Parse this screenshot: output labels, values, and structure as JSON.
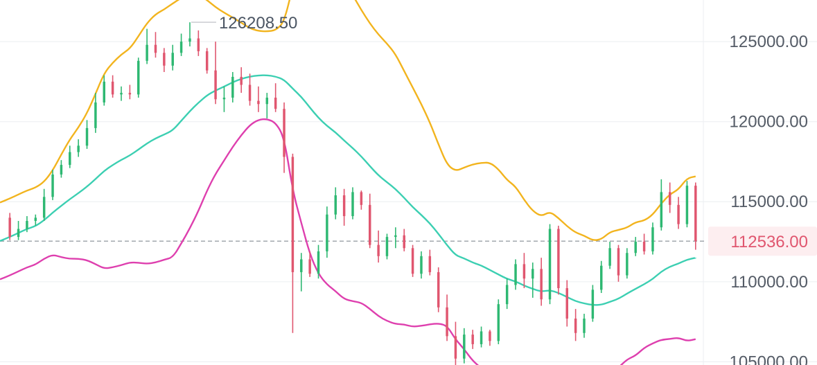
{
  "chart_data": {
    "type": "candlestick",
    "indicator": "Bollinger Bands",
    "y_axis": {
      "side": "right",
      "range": [
        104800,
        127600
      ],
      "tick_labels": [
        "125000.00",
        "120000.00",
        "115000.00",
        "110000.00",
        "105000.00"
      ],
      "tick_values": [
        125000,
        120000,
        115000,
        110000,
        105000
      ],
      "grid": true
    },
    "high_marker": {
      "label": "126208.50",
      "value": 126208.5
    },
    "last_price": {
      "label": "112536.00",
      "value": 112536
    },
    "colors": {
      "up": "#2eb872",
      "down": "#e0566f",
      "upper_band": "#f2b41e",
      "middle_band": "#3ccfb2",
      "lower_band": "#de3fae",
      "grid": "#eef0f3",
      "axis_text": "#545b66",
      "price_tag_bg": "#fdeef0",
      "price_tag_text": "#e0566f",
      "price_line": "#9aa0a6"
    },
    "candles": [
      [
        114000,
        114300,
        112600,
        112800
      ],
      [
        112800,
        113800,
        112600,
        113300
      ],
      [
        113300,
        114100,
        113100,
        113800
      ],
      [
        113800,
        114200,
        113500,
        114000
      ],
      [
        114000,
        115800,
        113800,
        115300
      ],
      [
        115300,
        117000,
        115100,
        116700
      ],
      [
        116700,
        117600,
        116500,
        117300
      ],
      [
        117300,
        118500,
        117100,
        118100
      ],
      [
        118100,
        118900,
        117800,
        118500
      ],
      [
        118500,
        120100,
        118300,
        119600
      ],
      [
        119600,
        121800,
        119300,
        121200
      ],
      [
        121200,
        122900,
        121000,
        122500
      ],
      [
        122500,
        122900,
        121500,
        121700
      ],
      [
        121700,
        122200,
        121300,
        121800
      ],
      [
        121800,
        122300,
        121400,
        121700
      ],
      [
        121700,
        124000,
        121500,
        123800
      ],
      [
        123800,
        125800,
        123600,
        124800
      ],
      [
        124800,
        125600,
        124000,
        124300
      ],
      [
        124300,
        124600,
        123100,
        123500
      ],
      [
        123500,
        124800,
        123200,
        124300
      ],
      [
        124300,
        125500,
        124100,
        125000
      ],
      [
        125000,
        126208,
        124700,
        125200
      ],
      [
        125200,
        125700,
        124100,
        124400
      ],
      [
        124400,
        124600,
        123000,
        123200
      ],
      [
        123200,
        125000,
        121100,
        121400
      ],
      [
        121400,
        122200,
        120600,
        121500
      ],
      [
        121500,
        123100,
        121200,
        122800
      ],
      [
        122800,
        123400,
        121800,
        122300
      ],
      [
        122300,
        123000,
        121000,
        121300
      ],
      [
        121300,
        122200,
        120600,
        121100
      ],
      [
        121100,
        121800,
        120200,
        121500
      ],
      [
        121500,
        122400,
        120600,
        120800
      ],
      [
        120800,
        121200,
        116800,
        117800
      ],
      [
        117800,
        118000,
        106800,
        110600
      ],
      [
        110600,
        111800,
        109400,
        111400
      ],
      [
        111400,
        111900,
        110300,
        110500
      ],
      [
        110500,
        112300,
        110200,
        111900
      ],
      [
        111900,
        114700,
        111500,
        114200
      ],
      [
        114200,
        115900,
        113900,
        115400
      ],
      [
        115400,
        115800,
        113500,
        114100
      ],
      [
        114100,
        115900,
        113900,
        115600
      ],
      [
        115600,
        115700,
        114500,
        114800
      ],
      [
        114800,
        115500,
        112100,
        112300
      ],
      [
        112300,
        113200,
        111200,
        111600
      ],
      [
        111600,
        113000,
        111400,
        112800
      ],
      [
        112800,
        113400,
        112100,
        112900
      ],
      [
        112900,
        113300,
        111900,
        112100
      ],
      [
        112100,
        112300,
        110300,
        110500
      ],
      [
        110500,
        111900,
        110200,
        111600
      ],
      [
        111600,
        112000,
        110400,
        110600
      ],
      [
        110600,
        110900,
        108100,
        108400
      ],
      [
        108400,
        109200,
        106300,
        106600
      ],
      [
        106600,
        107500,
        104800,
        105200
      ],
      [
        105200,
        107100,
        104900,
        106700
      ],
      [
        106700,
        107000,
        105800,
        106100
      ],
      [
        106100,
        107200,
        105900,
        106900
      ],
      [
        106900,
        107000,
        106000,
        106300
      ],
      [
        106300,
        108900,
        106100,
        108600
      ],
      [
        108600,
        110200,
        108300,
        109800
      ],
      [
        109800,
        111400,
        109500,
        111100
      ],
      [
        111100,
        111800,
        109600,
        110200
      ],
      [
        110200,
        111200,
        109000,
        110800
      ],
      [
        110800,
        111500,
        108500,
        108900
      ],
      [
        108900,
        113600,
        108600,
        113300
      ],
      [
        113300,
        113500,
        109200,
        109600
      ],
      [
        109600,
        110100,
        107200,
        107700
      ],
      [
        107700,
        108300,
        106300,
        106800
      ],
      [
        106800,
        108000,
        106500,
        107700
      ],
      [
        107700,
        109800,
        107500,
        109500
      ],
      [
        109500,
        111300,
        109300,
        111000
      ],
      [
        111000,
        112500,
        110800,
        112100
      ],
      [
        112100,
        112300,
        110000,
        110400
      ],
      [
        110400,
        112100,
        110200,
        111800
      ],
      [
        111800,
        112800,
        111600,
        112500
      ],
      [
        112500,
        113000,
        111700,
        111900
      ],
      [
        111900,
        113700,
        111700,
        113400
      ],
      [
        113400,
        116400,
        113200,
        115600
      ],
      [
        115600,
        116200,
        114300,
        114800
      ],
      [
        114800,
        115300,
        113300,
        113600
      ],
      [
        113600,
        116300,
        113400,
        116000
      ],
      [
        116000,
        116200,
        112000,
        112536
      ]
    ]
  }
}
